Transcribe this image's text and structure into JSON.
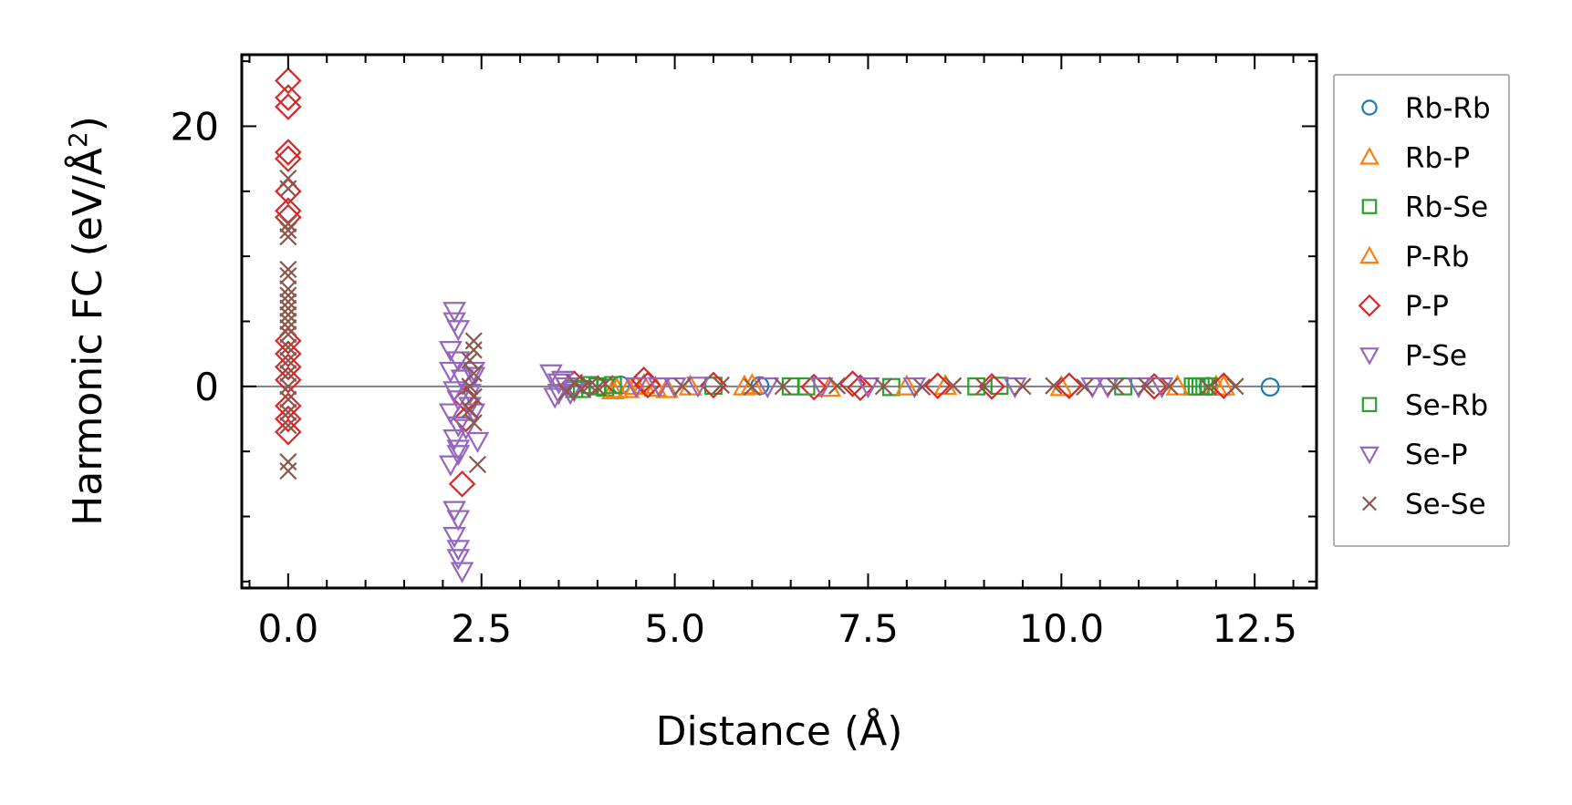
{
  "chart_data": {
    "type": "scatter",
    "xlabel": "Distance (Å)",
    "ylabel": {
      "main": "Harmonic FC (eV/Å",
      "sup": "2",
      "close": ")"
    },
    "xlim": [
      -0.6,
      13.3
    ],
    "ylim": [
      -15.5,
      25.5
    ],
    "x_ticks": [
      {
        "value": 0.0,
        "label": "0.0"
      },
      {
        "value": 2.5,
        "label": "2.5"
      },
      {
        "value": 5.0,
        "label": "5.0"
      },
      {
        "value": 7.5,
        "label": "7.5"
      },
      {
        "value": 10.0,
        "label": "10.0"
      },
      {
        "value": 12.5,
        "label": "12.5"
      }
    ],
    "y_ticks": [
      {
        "value": 0,
        "label": "0"
      },
      {
        "value": 20,
        "label": "20"
      }
    ],
    "x_minor_step": 0.5,
    "y_minor_step": 5,
    "zero_line": true,
    "legend_position": "outside-right",
    "series": [
      {
        "name": "Rb-Rb",
        "marker": "circle",
        "color": "#1f77b4",
        "points": [
          [
            12.7,
            -0.05
          ],
          [
            11.9,
            0.0
          ],
          [
            4.3,
            0.1
          ],
          [
            6.1,
            0.05
          ]
        ]
      },
      {
        "name": "Rb-P",
        "marker": "triangle-up",
        "color": "#ff7f0e",
        "points": [
          [
            4.2,
            -0.3
          ],
          [
            4.4,
            -0.2
          ],
          [
            4.6,
            0.1
          ],
          [
            4.9,
            -0.2
          ],
          [
            5.2,
            0.0
          ],
          [
            6.0,
            0.1
          ],
          [
            7.0,
            -0.1
          ],
          [
            8.5,
            0.05
          ],
          [
            10.0,
            -0.05
          ],
          [
            12.0,
            0.0
          ]
        ]
      },
      {
        "name": "Rb-Se",
        "marker": "square",
        "color": "#2ca02c",
        "points": [
          [
            3.7,
            -0.2
          ],
          [
            3.9,
            0.1
          ],
          [
            4.1,
            -0.1
          ],
          [
            5.5,
            0.05
          ],
          [
            6.5,
            0.0
          ],
          [
            7.8,
            -0.05
          ],
          [
            9.2,
            0.05
          ],
          [
            10.8,
            0.0
          ],
          [
            11.7,
            0.0
          ],
          [
            11.8,
            0.0
          ],
          [
            11.9,
            0.0
          ]
        ]
      },
      {
        "name": "P-Rb",
        "marker": "triangle-up",
        "color": "#ff7f0e",
        "points": [
          [
            4.25,
            -0.2
          ],
          [
            4.5,
            0.05
          ],
          [
            4.75,
            -0.1
          ],
          [
            5.9,
            0.0
          ],
          [
            8.0,
            0.0
          ],
          [
            11.5,
            0.0
          ],
          [
            12.1,
            0.0
          ]
        ]
      },
      {
        "name": "P-P",
        "marker": "diamond",
        "color": "#d62728",
        "points": [
          [
            0.0,
            23.5
          ],
          [
            0.0,
            22.2
          ],
          [
            0.0,
            21.5
          ],
          [
            0.0,
            18.0
          ],
          [
            0.0,
            17.5
          ],
          [
            0.0,
            15.0
          ],
          [
            0.0,
            13.5
          ],
          [
            0.0,
            13.0
          ],
          [
            0.0,
            3.5
          ],
          [
            0.0,
            2.5
          ],
          [
            0.0,
            1.5
          ],
          [
            0.0,
            0.5
          ],
          [
            0.0,
            -1.5
          ],
          [
            0.0,
            -2.5
          ],
          [
            0.0,
            -3.5
          ],
          [
            2.3,
            -1.0
          ],
          [
            2.3,
            -2.5
          ],
          [
            2.25,
            -7.5
          ],
          [
            4.6,
            0.5
          ],
          [
            4.65,
            0.1
          ],
          [
            3.7,
            0.2
          ],
          [
            5.5,
            0.1
          ],
          [
            6.8,
            -0.05
          ],
          [
            7.3,
            0.2
          ],
          [
            7.4,
            -0.1
          ],
          [
            8.4,
            0.05
          ],
          [
            9.1,
            0.0
          ],
          [
            10.1,
            0.05
          ],
          [
            11.2,
            0.0
          ],
          [
            12.1,
            0.05
          ]
        ]
      },
      {
        "name": "P-Se",
        "marker": "triangle-down",
        "color": "#9467bd",
        "points": [
          [
            2.15,
            5.8
          ],
          [
            2.15,
            5.0
          ],
          [
            2.2,
            4.4
          ],
          [
            2.1,
            2.8
          ],
          [
            2.2,
            2.0
          ],
          [
            2.1,
            1.2
          ],
          [
            2.25,
            0.6
          ],
          [
            2.15,
            -0.3
          ],
          [
            2.2,
            -1.0
          ],
          [
            2.1,
            -2.0
          ],
          [
            2.2,
            -3.0
          ],
          [
            2.15,
            -4.0
          ],
          [
            2.2,
            -4.8
          ],
          [
            2.35,
            -0.5
          ],
          [
            2.4,
            1.2
          ],
          [
            2.4,
            -2.0
          ],
          [
            2.45,
            -4.2
          ],
          [
            3.4,
            1.0
          ],
          [
            3.5,
            0.3
          ],
          [
            3.5,
            -0.5
          ],
          [
            3.6,
            0.0
          ],
          [
            3.7,
            -0.3
          ],
          [
            4.5,
            0.0
          ],
          [
            5.0,
            0.0
          ],
          [
            6.2,
            0.0
          ],
          [
            7.5,
            0.0
          ],
          [
            9.4,
            0.0
          ],
          [
            10.6,
            0.0
          ],
          [
            11.3,
            0.0
          ]
        ]
      },
      {
        "name": "Se-Rb",
        "marker": "square",
        "color": "#2ca02c",
        "points": [
          [
            3.8,
            -0.2
          ],
          [
            4.0,
            0.0
          ],
          [
            4.2,
            0.1
          ],
          [
            6.7,
            0.0
          ],
          [
            8.9,
            0.0
          ],
          [
            11.75,
            0.0
          ],
          [
            11.85,
            0.0
          ]
        ]
      },
      {
        "name": "Se-P",
        "marker": "triangle-down",
        "color": "#9467bd",
        "points": [
          [
            2.15,
            -9.5
          ],
          [
            2.2,
            -10.2
          ],
          [
            2.15,
            -11.5
          ],
          [
            2.2,
            -12.5
          ],
          [
            2.2,
            -13.2
          ],
          [
            2.25,
            -14.2
          ],
          [
            2.1,
            -6.0
          ],
          [
            2.2,
            -5.2
          ],
          [
            2.3,
            -3.2
          ],
          [
            2.35,
            -1.5
          ],
          [
            2.4,
            0.8
          ],
          [
            3.45,
            -0.8
          ],
          [
            3.55,
            0.5
          ],
          [
            3.65,
            -0.5
          ],
          [
            4.8,
            0.0
          ],
          [
            5.3,
            0.05
          ],
          [
            6.9,
            0.0
          ],
          [
            8.1,
            0.0
          ],
          [
            10.4,
            0.0
          ],
          [
            11.0,
            0.0
          ]
        ]
      },
      {
        "name": "Se-Se",
        "marker": "x",
        "color": "#8c564b",
        "points": [
          [
            0.0,
            16.0
          ],
          [
            0.0,
            15.2
          ],
          [
            0.0,
            12.5
          ],
          [
            0.0,
            12.0
          ],
          [
            0.0,
            11.5
          ],
          [
            0.0,
            9.0
          ],
          [
            0.0,
            8.5
          ],
          [
            0.0,
            7.5
          ],
          [
            0.0,
            7.0
          ],
          [
            0.0,
            6.5
          ],
          [
            0.0,
            6.0
          ],
          [
            0.0,
            5.5
          ],
          [
            0.0,
            5.0
          ],
          [
            0.0,
            4.5
          ],
          [
            0.0,
            4.0
          ],
          [
            0.0,
            3.0
          ],
          [
            0.0,
            2.0
          ],
          [
            0.0,
            1.0
          ],
          [
            0.0,
            0.0
          ],
          [
            0.0,
            -1.0
          ],
          [
            0.0,
            -2.0
          ],
          [
            0.0,
            -3.0
          ],
          [
            0.0,
            -5.8
          ],
          [
            0.0,
            -6.5
          ],
          [
            2.4,
            3.5
          ],
          [
            2.4,
            2.8
          ],
          [
            2.35,
            2.0
          ],
          [
            2.4,
            1.0
          ],
          [
            2.35,
            0.0
          ],
          [
            2.4,
            -0.8
          ],
          [
            2.35,
            -1.8
          ],
          [
            2.4,
            -2.8
          ],
          [
            2.45,
            -6.0
          ],
          [
            3.6,
            -0.4
          ],
          [
            3.7,
            0.3
          ],
          [
            3.8,
            -0.2
          ],
          [
            3.9,
            0.1
          ],
          [
            4.0,
            -0.1
          ],
          [
            4.1,
            0.2
          ],
          [
            5.1,
            0.0
          ],
          [
            5.6,
            0.1
          ],
          [
            6.0,
            -0.05
          ],
          [
            6.4,
            0.0
          ],
          [
            7.1,
            0.05
          ],
          [
            7.7,
            0.0
          ],
          [
            8.2,
            -0.05
          ],
          [
            8.6,
            0.05
          ],
          [
            9.0,
            0.0
          ],
          [
            9.5,
            0.0
          ],
          [
            9.9,
            0.05
          ],
          [
            10.3,
            -0.05
          ],
          [
            10.7,
            0.0
          ],
          [
            11.1,
            0.05
          ],
          [
            11.4,
            0.0
          ],
          [
            11.9,
            -0.05
          ],
          [
            12.25,
            0.0
          ]
        ]
      }
    ]
  }
}
